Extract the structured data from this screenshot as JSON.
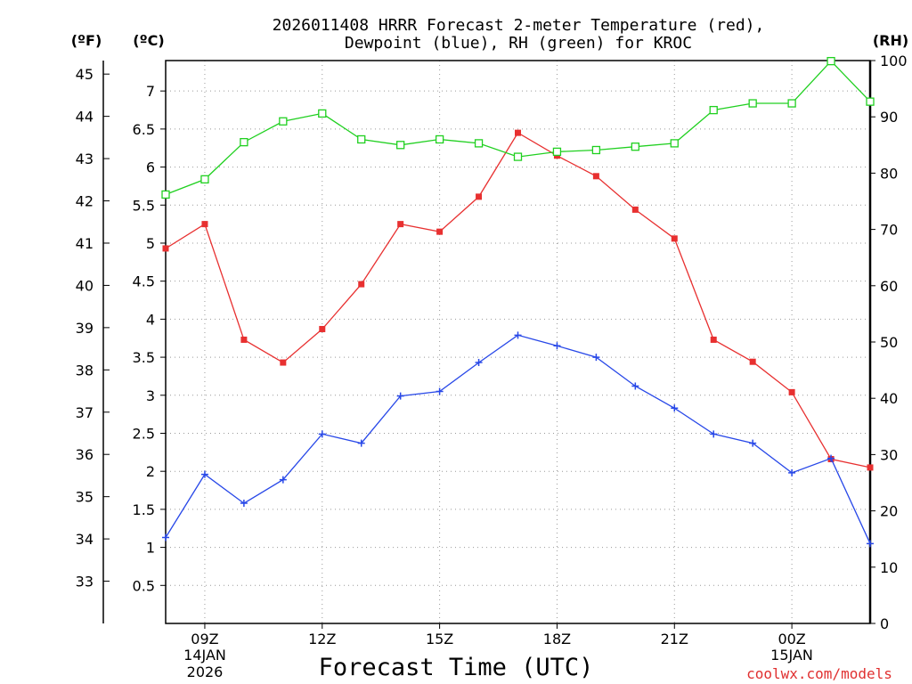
{
  "credit": "coolwx.com/models",
  "chart_data": {
    "type": "line",
    "title_line1": "2026011408 HRRR Forecast 2-meter Temperature (red),",
    "title_line2": "Dewpoint (blue), RH (green) for KROC",
    "xlabel": "Forecast Time (UTC)",
    "x": [
      8,
      9,
      10,
      11,
      12,
      13,
      14,
      15,
      16,
      17,
      18,
      19,
      20,
      21,
      22,
      23,
      24,
      25,
      26
    ],
    "x_tick_labels": [
      "09Z",
      "12Z",
      "15Z",
      "18Z",
      "21Z",
      "00Z"
    ],
    "axes": {
      "c_axis_label": "(ºC)",
      "f_axis_label": "(ºF)",
      "rh_axis_label": "(RH)",
      "c_range": [
        0,
        7.4
      ],
      "c_ticks": [
        "0.5",
        "1",
        "1.5",
        "2",
        "2.5",
        "3",
        "3.5",
        "4",
        "4.5",
        "5",
        "5.5",
        "6",
        "6.5",
        "7"
      ],
      "f_ticks": [
        "33",
        "34",
        "35",
        "36",
        "37",
        "38",
        "39",
        "40",
        "41",
        "42",
        "43",
        "44",
        "45"
      ],
      "rh_range": [
        0,
        100
      ],
      "rh_ticks": [
        "0",
        "10",
        "20",
        "30",
        "40",
        "50",
        "60",
        "70",
        "80",
        "90",
        "100"
      ],
      "date_start_day": "14JAN",
      "date_start_year": "2026",
      "date_end_day": "15JAN"
    },
    "series": [
      {
        "name": "Temperature",
        "unit": "C",
        "color": "#e83030",
        "marker": "filled-square",
        "values": [
          4.93,
          5.25,
          3.73,
          3.43,
          3.87,
          4.46,
          5.25,
          5.15,
          5.61,
          6.45,
          6.15,
          5.88,
          5.44,
          5.06,
          3.73,
          3.44,
          3.04,
          2.16,
          2.05
        ]
      },
      {
        "name": "Dewpoint",
        "unit": "C",
        "color": "#2848e8",
        "marker": "plus",
        "values": [
          1.13,
          1.96,
          1.58,
          1.89,
          2.49,
          2.37,
          2.99,
          3.05,
          3.43,
          3.79,
          3.65,
          3.5,
          3.12,
          2.83,
          2.49,
          2.37,
          1.98,
          2.17,
          1.05
        ]
      },
      {
        "name": "RH",
        "unit": "%",
        "color": "#20d020",
        "marker": "open-square",
        "values": [
          76.2,
          78.9,
          85.5,
          89.2,
          90.6,
          86.0,
          85.0,
          86.0,
          85.3,
          82.9,
          83.8,
          84.1,
          84.7,
          85.3,
          91.2,
          92.4,
          92.4,
          99.9,
          92.7
        ]
      }
    ]
  }
}
